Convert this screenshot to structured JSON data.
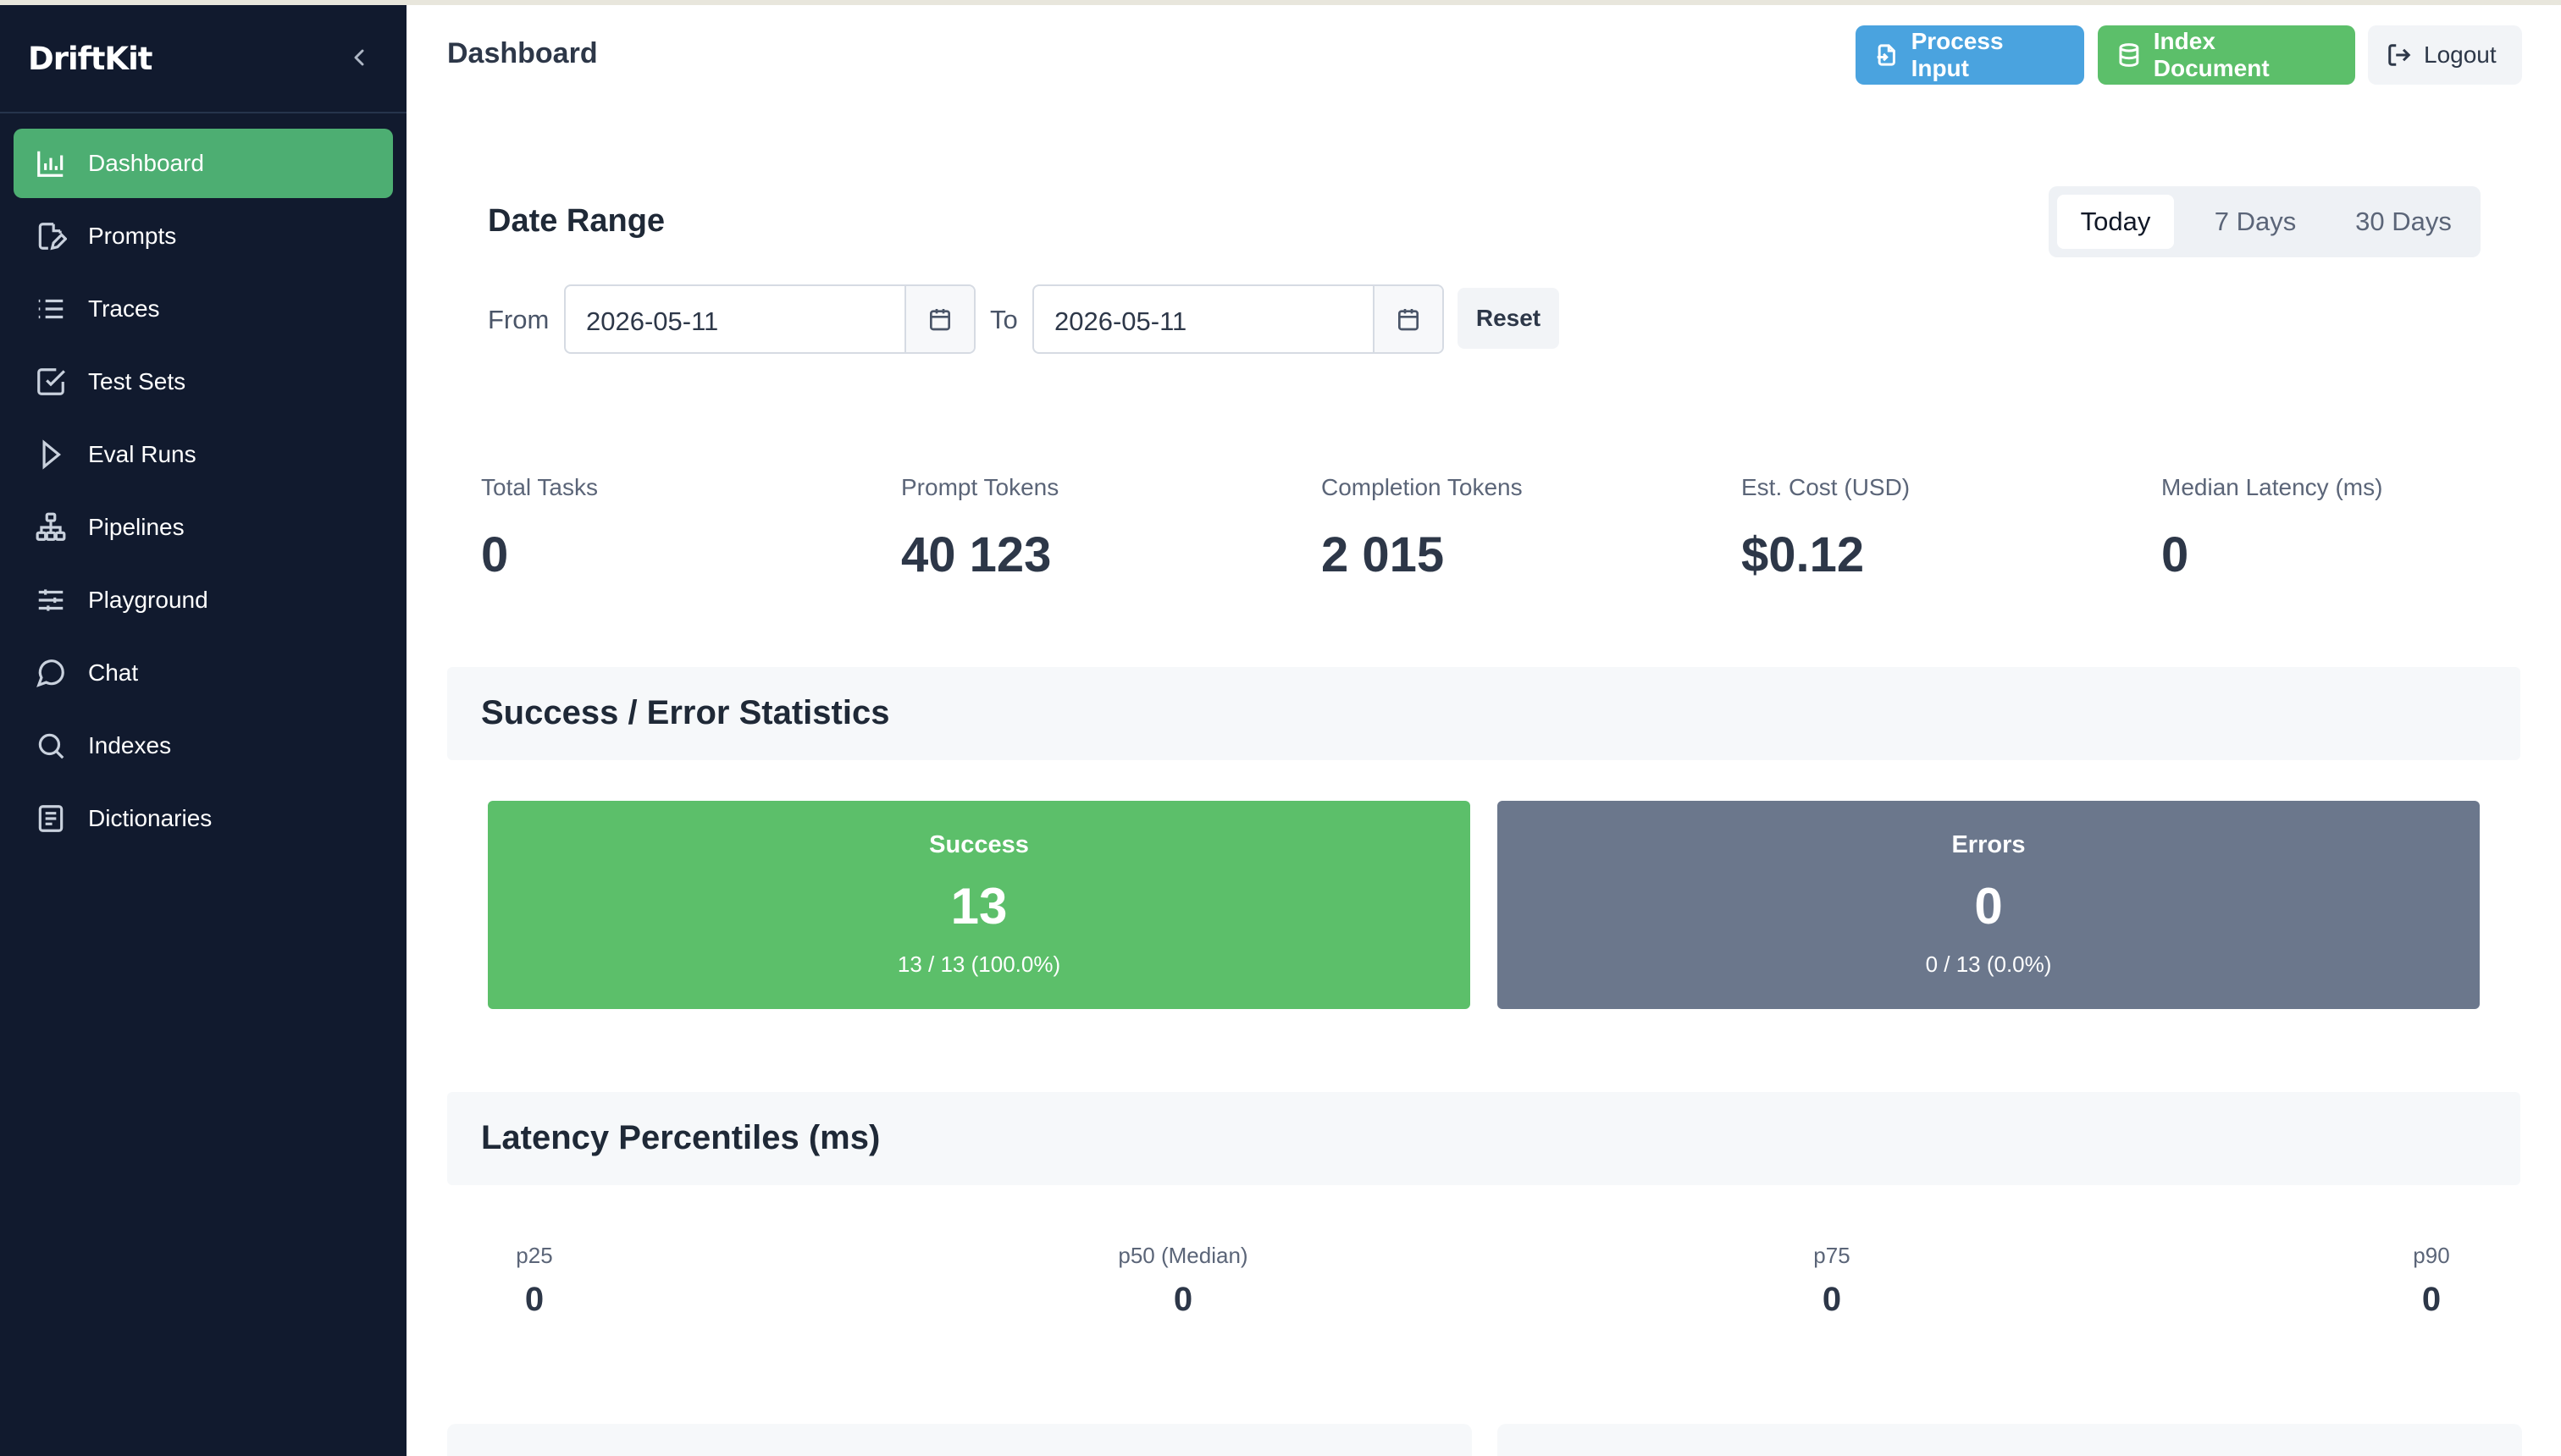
{
  "app": {
    "brand": "DriftKit"
  },
  "sidebar": {
    "items": [
      {
        "label": "Dashboard",
        "icon": "bar-chart-icon",
        "active": true
      },
      {
        "label": "Prompts",
        "icon": "file-edit-icon"
      },
      {
        "label": "Traces",
        "icon": "list-icon"
      },
      {
        "label": "Test Sets",
        "icon": "checkbox-icon"
      },
      {
        "label": "Eval Runs",
        "icon": "play-icon"
      },
      {
        "label": "Pipelines",
        "icon": "hierarchy-icon"
      },
      {
        "label": "Playground",
        "icon": "sliders-icon"
      },
      {
        "label": "Chat",
        "icon": "chat-icon"
      },
      {
        "label": "Indexes",
        "icon": "search-icon"
      },
      {
        "label": "Dictionaries",
        "icon": "book-icon"
      }
    ]
  },
  "header": {
    "title": "Dashboard",
    "process_label": "Process Input",
    "index_label": "Index Document",
    "logout_label": "Logout"
  },
  "date_range": {
    "title": "Date Range",
    "from_label": "From",
    "to_label": "To",
    "from_value": "2026-05-11",
    "to_value": "2026-05-11",
    "reset_label": "Reset",
    "presets": [
      "Today",
      "7 Days",
      "30 Days"
    ],
    "selected_preset": "Today"
  },
  "stats": [
    {
      "label": "Total Tasks",
      "value": "0"
    },
    {
      "label": "Prompt Tokens",
      "value": "40 123"
    },
    {
      "label": "Completion Tokens",
      "value": "2 015"
    },
    {
      "label": "Est. Cost (USD)",
      "value": "$0.12"
    },
    {
      "label": "Median Latency (ms)",
      "value": "0"
    }
  ],
  "success_error": {
    "title": "Success / Error Statistics",
    "success": {
      "label": "Success",
      "value": "13",
      "ratio": "13 / 13 (100.0%)"
    },
    "errors": {
      "label": "Errors",
      "value": "0",
      "ratio": "0 / 13 (0.0%)"
    }
  },
  "latency": {
    "title": "Latency Percentiles (ms)",
    "items": [
      {
        "label": "p25",
        "value": "0"
      },
      {
        "label": "p50 (Median)",
        "value": "0"
      },
      {
        "label": "p75",
        "value": "0"
      },
      {
        "label": "p90",
        "value": "0"
      }
    ]
  },
  "colors": {
    "sidebar_bg": "#111a2e",
    "active_nav": "#4dae72",
    "primary_blue": "#4aa3df",
    "success_green": "#5cbf6a",
    "errors_gray": "#6b778c"
  }
}
